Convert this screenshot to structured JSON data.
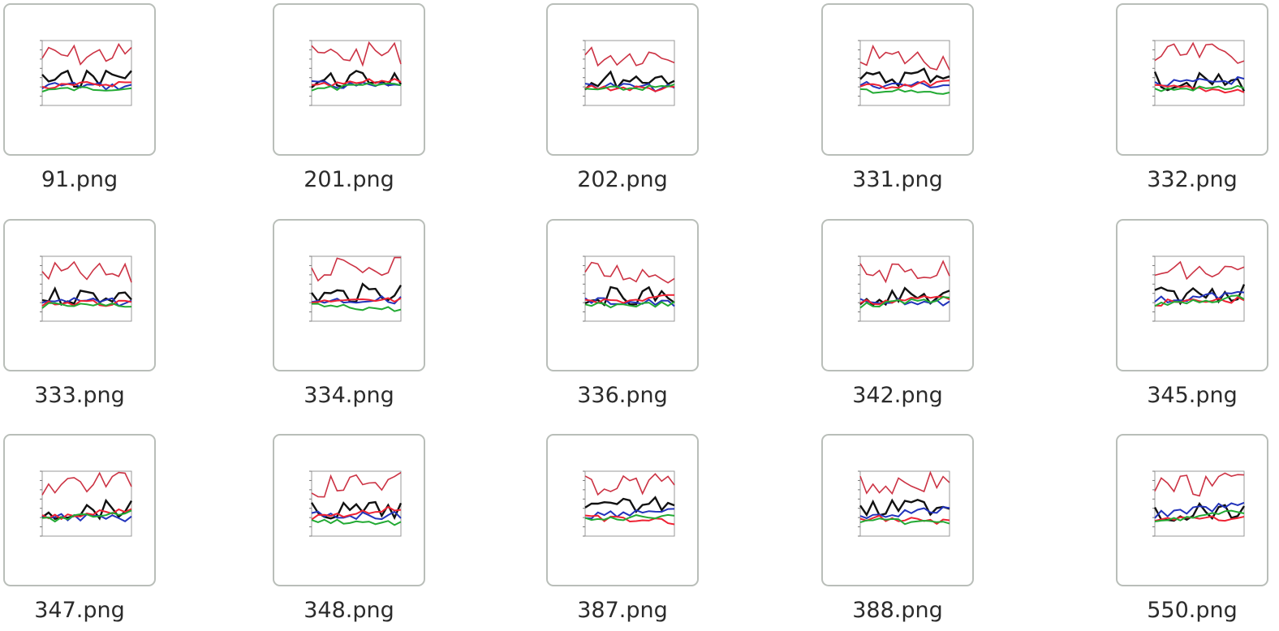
{
  "files": [
    "91.png",
    "201.png",
    "202.png",
    "331.png",
    "332.png",
    "333.png",
    "334.png",
    "336.png",
    "342.png",
    "345.png",
    "347.png",
    "348.png",
    "387.png",
    "388.png",
    "550.png"
  ]
}
